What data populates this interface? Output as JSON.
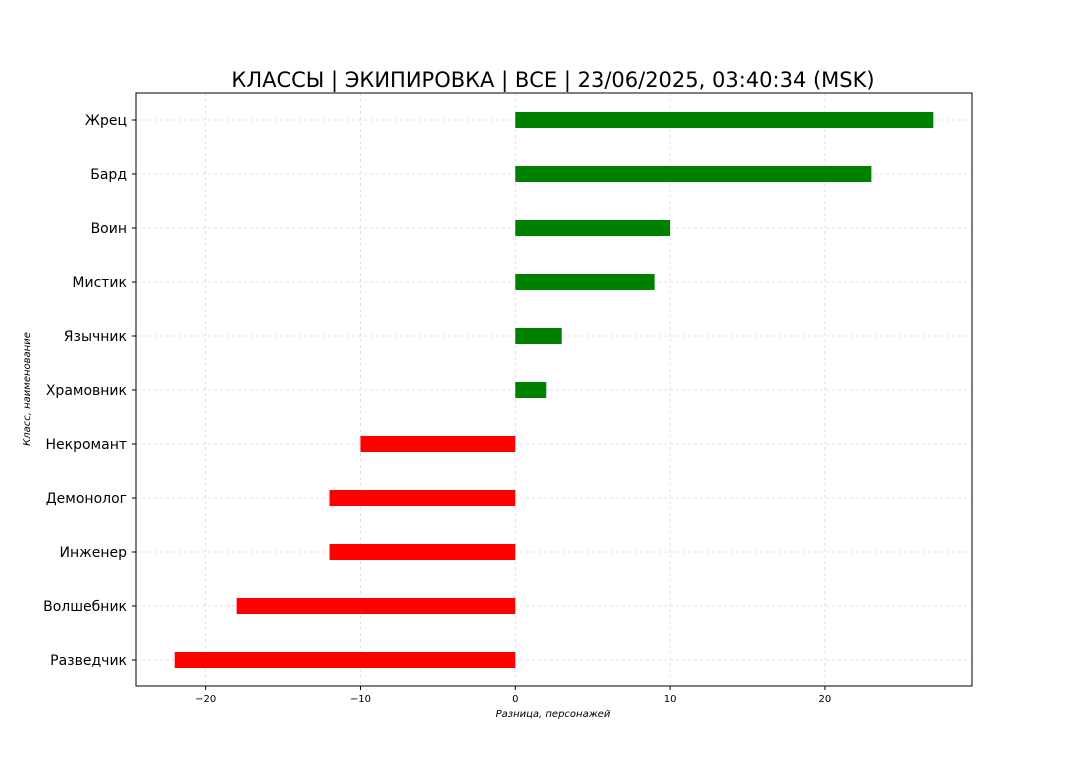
{
  "chart_data": {
    "type": "bar",
    "orientation": "horizontal",
    "title": "КЛАССЫ | ЭКИПИРОВКА | ВСЕ | 23/06/2025, 03:40:34 (MSK)",
    "xlabel": "Разница, персонажей",
    "ylabel": "Класс, наименование",
    "categories": [
      "Жрец",
      "Бард",
      "Воин",
      "Мистик",
      "Язычник",
      "Храмовник",
      "Некромант",
      "Демонолог",
      "Инженер",
      "Волшебник",
      "Разведчик"
    ],
    "values": [
      27,
      23,
      10,
      9,
      3,
      2,
      -10,
      -12,
      -12,
      -18,
      -22
    ],
    "xlim": [
      -24.5,
      29.5
    ],
    "xticks": [
      -20,
      -10,
      0,
      10,
      20
    ],
    "xtick_labels": [
      "−20",
      "−10",
      "0",
      "10",
      "20"
    ],
    "grid": true,
    "colors": {
      "positive": "#008000",
      "negative": "#ff0000"
    }
  }
}
